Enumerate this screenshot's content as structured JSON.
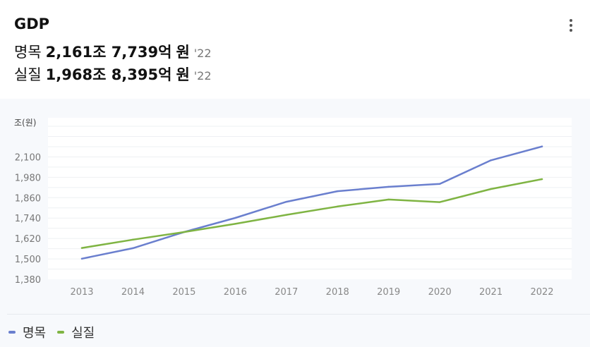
{
  "header": {
    "title": "GDP",
    "metrics": [
      {
        "label": "명목",
        "value": "2,161조 7,739억",
        "unit": "원",
        "year": "'22"
      },
      {
        "label": "실질",
        "value": "1,968조 8,395억",
        "unit": "원",
        "year": "'22"
      }
    ]
  },
  "icons": {
    "menu": "more-vertical-icon"
  },
  "colors": {
    "nominal": "#6a7fce",
    "real": "#7fb443",
    "grid": "#eef0f3"
  },
  "chart_data": {
    "type": "line",
    "y_unit_label": "조(원)",
    "categories": [
      "2013",
      "2014",
      "2015",
      "2016",
      "2017",
      "2018",
      "2019",
      "2020",
      "2021",
      "2022"
    ],
    "series": [
      {
        "name": "명목",
        "color": "#6a7fce",
        "values": [
          1501,
          1563,
          1658,
          1741,
          1836,
          1898,
          1924,
          1941,
          2080,
          2161
        ]
      },
      {
        "name": "실질",
        "color": "#7fb443",
        "values": [
          1564,
          1613,
          1658,
          1706,
          1759,
          1808,
          1849,
          1834,
          1911,
          1969
        ]
      }
    ],
    "y_ticks": [
      1380,
      1500,
      1620,
      1740,
      1860,
      1980,
      2100
    ],
    "ylim": [
      1380,
      2330
    ],
    "grid": true,
    "legend_position": "bottom-left"
  }
}
